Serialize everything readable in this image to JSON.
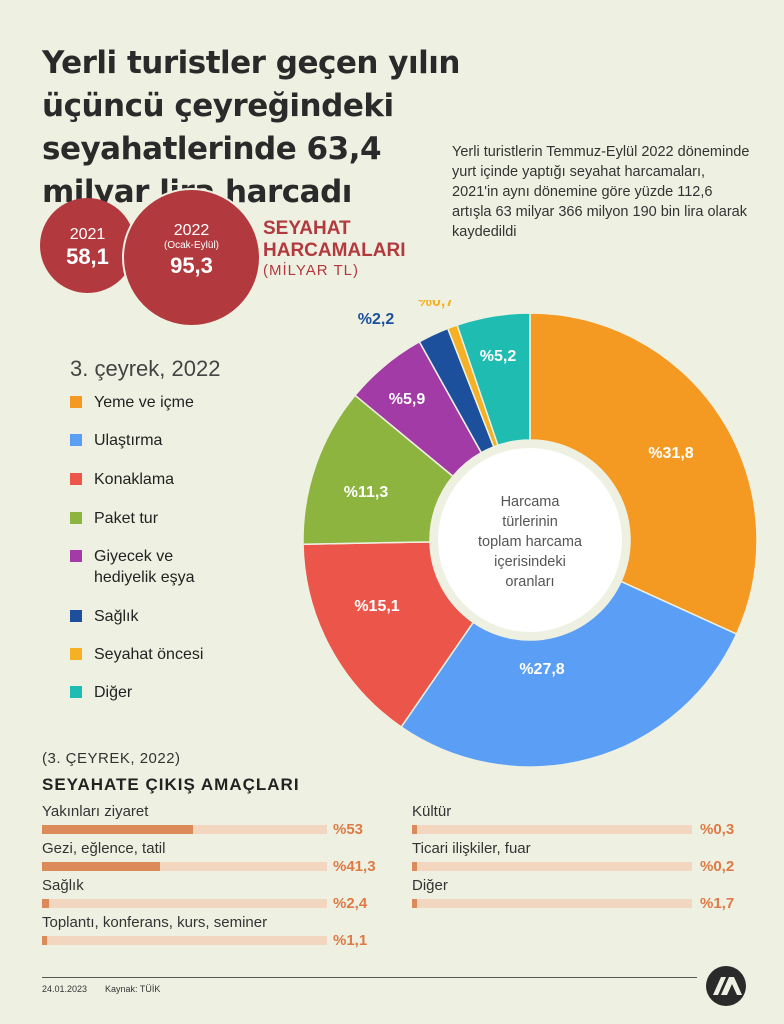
{
  "title": "Yerli turistler geçen yılın üçüncü çeyreğindeki seyahatlerinde 63,4 milyar lira harcadı",
  "description": "Yerli turistlerin Temmuz-Eylül 2022 döneminde yurt içinde yaptığı seyahat harcamaları, 2021'in aynı dönemine göre yüzde 112,6 artışla 63 milyar 366 milyon 190 bin lira olarak kaydedildi",
  "spending": {
    "y2021": {
      "year": "2021",
      "value": "58,1"
    },
    "y2022": {
      "year": "2022",
      "sub": "(Ocak-Eylül)",
      "value": "95,3"
    },
    "label1": "SEYAHAT",
    "label2": "HARCAMALARI",
    "unit": "(MİLYAR TL)"
  },
  "chart_data": {
    "type": "pie",
    "title": "3. çeyrek, 2022",
    "center_label": "Harcama türlerinin toplam harcama içerisindeki oranları",
    "categories": [
      "Yeme ve içme",
      "Ulaştırma",
      "Konaklama",
      "Paket tur",
      "Giyecek ve hediyelik eşya",
      "Sağlık",
      "Seyahat öncesi",
      "Diğer"
    ],
    "values": [
      31.8,
      27.8,
      15.1,
      11.3,
      5.9,
      2.2,
      0.7,
      5.2
    ],
    "value_labels": [
      "%31,8",
      "%27,8",
      "%15,1",
      "%11,3",
      "%5,9",
      "%2,2",
      "%0,7",
      "%5,2"
    ],
    "colors": [
      "#f49a23",
      "#5b9ef5",
      "#ec5549",
      "#8db43e",
      "#a23ba6",
      "#1c4f9c",
      "#f5b024",
      "#1fbcb2"
    ],
    "legend_labels": [
      "Yeme ve içme",
      "Ulaştırma",
      "Konaklama",
      "Paket tur",
      "Giyecek ve",
      "hediyelik eşya",
      "Sağlık",
      "Seyahat öncesi",
      "Diğer"
    ]
  },
  "purposes": {
    "period": "(3. ÇEYREK, 2022)",
    "heading": "SEYAHATE ÇIKIŞ AMAÇLARI",
    "items": [
      {
        "label": "Yakınları ziyaret",
        "value": 53,
        "text": "%53"
      },
      {
        "label": "Gezi, eğlence, tatil",
        "value": 41.3,
        "text": "%41,3"
      },
      {
        "label": "Sağlık",
        "value": 2.4,
        "text": "%2,4"
      },
      {
        "label": "Toplantı, konferans, kurs, seminer",
        "value": 1.1,
        "text": "%1,1"
      },
      {
        "label": "Kültür",
        "value": 0.3,
        "text": "%0,3"
      },
      {
        "label": "Ticari ilişkiler, fuar",
        "value": 0.2,
        "text": "%0,2"
      },
      {
        "label": "Diğer",
        "value": 1.7,
        "text": "%1,7"
      }
    ]
  },
  "footer": {
    "date": "24.01.2023",
    "source": "Kaynak: TÜİK",
    "logo": "AA"
  }
}
